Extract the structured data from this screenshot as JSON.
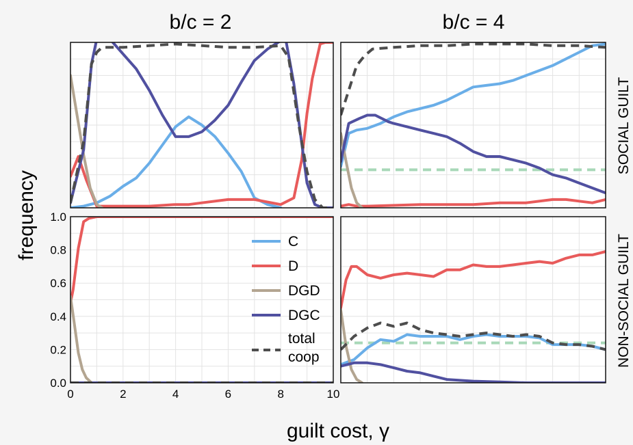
{
  "figure": {
    "col_titles": [
      "b/c = 2",
      "b/c = 4"
    ],
    "row_titles": [
      "SOCIAL GUILT",
      "NON-SOCIAL GUILT"
    ],
    "ylabel": "frequency",
    "xlabel": "guilt cost, γ",
    "x_ticks": [
      "0",
      "2",
      "4",
      "6",
      "8",
      "10"
    ],
    "y_ticks": [
      "0.0",
      "0.2",
      "0.4",
      "0.6",
      "0.8",
      "1.0"
    ],
    "legend": [
      "C",
      "D",
      "DGD",
      "DGC",
      "total coop"
    ]
  },
  "colors": {
    "C": "#6aaee8",
    "D": "#e85b5b",
    "DGD": "#b3a591",
    "DGC": "#5050a0",
    "coop": "#4d4d4d",
    "ref": "#a8d8b8"
  },
  "chart_data": [
    {
      "type": "line",
      "panel": "b/c = 2, SOCIAL GUILT",
      "xlim": [
        0,
        10
      ],
      "ylim": [
        0,
        1
      ],
      "series": [
        {
          "name": "C",
          "x": [
            0,
            0.5,
            1,
            1.5,
            2,
            2.5,
            3,
            3.5,
            4,
            4.5,
            5,
            5.5,
            6,
            6.5,
            7,
            7.5,
            8
          ],
          "y": [
            0,
            0.01,
            0.03,
            0.07,
            0.13,
            0.18,
            0.27,
            0.38,
            0.49,
            0.55,
            0.5,
            0.43,
            0.33,
            0.22,
            0.06,
            0.02,
            0
          ]
        },
        {
          "name": "D",
          "x": [
            0,
            0.3,
            0.6,
            1,
            2,
            3,
            4,
            4.5,
            5,
            6,
            7,
            8,
            8.5,
            8.8,
            9,
            9.2,
            9.5,
            9.7,
            10
          ],
          "y": [
            0.19,
            0.31,
            0.17,
            0.01,
            0.01,
            0.01,
            0.02,
            0.02,
            0.03,
            0.05,
            0.05,
            0.02,
            0.06,
            0.29,
            0.57,
            0.78,
            0.99,
            1,
            1
          ]
        },
        {
          "name": "DGD",
          "x": [
            0,
            0.25,
            0.5,
            0.75,
            1,
            1.2
          ],
          "y": [
            0.8,
            0.56,
            0.32,
            0.12,
            0.02,
            0
          ]
        },
        {
          "name": "DGC",
          "x": [
            0,
            0.5,
            0.8,
            1,
            1.2,
            1.5,
            2,
            2.5,
            3,
            3.5,
            4,
            4.5,
            5,
            5.5,
            6,
            6.5,
            7,
            7.5,
            8,
            8.2,
            8.5,
            9,
            9.3,
            9.6,
            10
          ],
          "y": [
            0.03,
            0.35,
            0.87,
            1.02,
            1.05,
            1.02,
            0.93,
            0.84,
            0.71,
            0.56,
            0.43,
            0.43,
            0.46,
            0.53,
            0.62,
            0.76,
            0.89,
            0.96,
            1.01,
            1.01,
            0.75,
            0.15,
            0.02,
            0,
            0
          ]
        },
        {
          "name": "total coop",
          "x": [
            0,
            0.5,
            0.8,
            1,
            1.2,
            2,
            3,
            4,
            5,
            6,
            7,
            8,
            8.3,
            8.7,
            9,
            9.3,
            9.6,
            10
          ],
          "y": [
            0.03,
            0.4,
            0.87,
            0.94,
            0.97,
            0.97,
            0.98,
            0.99,
            0.98,
            0.97,
            0.97,
            0.98,
            0.91,
            0.49,
            0.22,
            0.05,
            0,
            0
          ]
        }
      ]
    },
    {
      "type": "line",
      "panel": "b/c = 4, SOCIAL GUILT",
      "xlim": [
        0,
        10
      ],
      "ylim": [
        0,
        1
      ],
      "series": [
        {
          "name": "C",
          "x": [
            0,
            0.3,
            0.6,
            1,
            1.5,
            2,
            2.5,
            3,
            3.5,
            4,
            4.5,
            5,
            5.5,
            6,
            6.5,
            7,
            7.5,
            8,
            8.5,
            9,
            9.5,
            10
          ],
          "y": [
            0.25,
            0.45,
            0.47,
            0.48,
            0.51,
            0.55,
            0.58,
            0.6,
            0.62,
            0.65,
            0.69,
            0.73,
            0.74,
            0.75,
            0.77,
            0.8,
            0.83,
            0.86,
            0.9,
            0.94,
            0.98,
            0.99
          ]
        },
        {
          "name": "D",
          "x": [
            0,
            0.3,
            0.6,
            1,
            3,
            5,
            6,
            7,
            8,
            8.5,
            9,
            9.5,
            10
          ],
          "y": [
            0.01,
            0.02,
            0.01,
            0.01,
            0.02,
            0.02,
            0.03,
            0.03,
            0.05,
            0.05,
            0.04,
            0.03,
            0.05
          ]
        },
        {
          "name": "DGD",
          "x": [
            0,
            0.2,
            0.4,
            0.6,
            0.8
          ],
          "y": [
            0.45,
            0.28,
            0.12,
            0.03,
            0
          ]
        },
        {
          "name": "DGC",
          "x": [
            0,
            0.3,
            0.7,
            1,
            1.3,
            1.8,
            2,
            2.5,
            3,
            3.5,
            4,
            4.5,
            5,
            5.5,
            6,
            6.5,
            7,
            7.5,
            8,
            8.5,
            9,
            9.5,
            10
          ],
          "y": [
            0.28,
            0.51,
            0.54,
            0.56,
            0.56,
            0.52,
            0.51,
            0.49,
            0.47,
            0.45,
            0.43,
            0.39,
            0.34,
            0.31,
            0.31,
            0.29,
            0.27,
            0.24,
            0.2,
            0.18,
            0.15,
            0.12,
            0.09
          ]
        },
        {
          "name": "total coop",
          "x": [
            0,
            0.3,
            0.6,
            0.9,
            1.2,
            2,
            3,
            4,
            5,
            6,
            7,
            8,
            9,
            10
          ],
          "y": [
            0.56,
            0.71,
            0.86,
            0.92,
            0.96,
            0.97,
            0.98,
            0.98,
            0.99,
            0.99,
            0.99,
            0.98,
            0.98,
            0.97
          ]
        }
      ],
      "reference_line": 0.23
    },
    {
      "type": "line",
      "panel": "b/c = 2, NON-SOCIAL GUILT",
      "xlim": [
        0,
        10
      ],
      "ylim": [
        0,
        1
      ],
      "series": [
        {
          "name": "C",
          "x": [
            0,
            10
          ],
          "y": [
            0,
            0
          ]
        },
        {
          "name": "D",
          "x": [
            0,
            0.1,
            0.3,
            0.5,
            0.7,
            1,
            10
          ],
          "y": [
            0.48,
            0.56,
            0.81,
            0.97,
            0.99,
            1,
            1
          ]
        },
        {
          "name": "DGD",
          "x": [
            0,
            0.15,
            0.3,
            0.45,
            0.6,
            0.8,
            1
          ],
          "y": [
            0.52,
            0.35,
            0.18,
            0.08,
            0.03,
            0,
            0
          ]
        },
        {
          "name": "DGC",
          "x": [
            0,
            10
          ],
          "y": [
            0,
            0
          ]
        },
        {
          "name": "total coop",
          "x": [
            0,
            10
          ],
          "y": [
            0,
            0
          ]
        }
      ]
    },
    {
      "type": "line",
      "panel": "b/c = 4, NON-SOCIAL GUILT",
      "xlim": [
        0,
        10
      ],
      "ylim": [
        0,
        1
      ],
      "series": [
        {
          "name": "C",
          "x": [
            0,
            0.5,
            1,
            1.5,
            2,
            2.5,
            3,
            3.5,
            4,
            4.5,
            5,
            5.5,
            6,
            6.5,
            7,
            7.5,
            8,
            8.5,
            9,
            9.5,
            10
          ],
          "y": [
            0.11,
            0.14,
            0.21,
            0.26,
            0.25,
            0.29,
            0.28,
            0.28,
            0.28,
            0.26,
            0.28,
            0.29,
            0.28,
            0.28,
            0.28,
            0.27,
            0.23,
            0.23,
            0.23,
            0.22,
            0.2
          ]
        },
        {
          "name": "D",
          "x": [
            0,
            0.2,
            0.4,
            0.6,
            1,
            1.5,
            2,
            2.5,
            3,
            3.5,
            4,
            4.5,
            5,
            5.5,
            6,
            6.5,
            7,
            7.5,
            8,
            8.5,
            9,
            9.5,
            10
          ],
          "y": [
            0.45,
            0.62,
            0.7,
            0.7,
            0.65,
            0.63,
            0.65,
            0.66,
            0.65,
            0.64,
            0.68,
            0.68,
            0.71,
            0.7,
            0.7,
            0.71,
            0.72,
            0.73,
            0.72,
            0.75,
            0.77,
            0.77,
            0.79
          ]
        },
        {
          "name": "DGD",
          "x": [
            0,
            0.2,
            0.4,
            0.6,
            0.8
          ],
          "y": [
            0.44,
            0.22,
            0.08,
            0.02,
            0
          ]
        },
        {
          "name": "DGC",
          "x": [
            0,
            0.5,
            1,
            1.5,
            2,
            2.5,
            3,
            3.5,
            4,
            5,
            6,
            7,
            8,
            9,
            10
          ],
          "y": [
            0.1,
            0.12,
            0.12,
            0.11,
            0.09,
            0.07,
            0.06,
            0.04,
            0.02,
            0.01,
            0.005,
            0,
            0,
            0,
            0
          ]
        },
        {
          "name": "total coop",
          "x": [
            0,
            0.5,
            1,
            1.5,
            2,
            2.5,
            3,
            3.5,
            4,
            4.5,
            5,
            5.5,
            6,
            6.5,
            7,
            7.5,
            8,
            8.5,
            9,
            9.5,
            10
          ],
          "y": [
            0.2,
            0.28,
            0.33,
            0.36,
            0.34,
            0.36,
            0.32,
            0.3,
            0.29,
            0.28,
            0.29,
            0.3,
            0.29,
            0.28,
            0.29,
            0.28,
            0.24,
            0.23,
            0.23,
            0.22,
            0.2
          ]
        }
      ],
      "reference_line": 0.24
    }
  ]
}
